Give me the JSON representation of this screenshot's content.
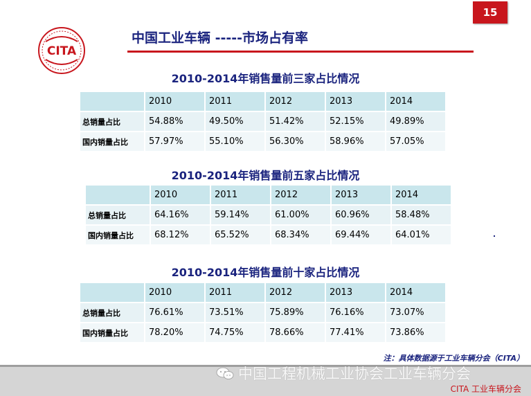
{
  "page_number": "15",
  "logo_text": "CITA",
  "page_title": "中国工业车辆 -----市场占有率",
  "colors": {
    "accent_red": "#c8161d",
    "navy": "#1a237e",
    "header_cell": "#c9e6ec",
    "body_cell": "#e7f2f5"
  },
  "tables": [
    {
      "title_year": "2010-2014",
      "title_rest": "年销售量前三家占比情况",
      "years": [
        "2010",
        "2011",
        "2012",
        "2013",
        "2014"
      ],
      "rows": [
        {
          "label": "总销量占比",
          "values": [
            "54.88%",
            "49.50%",
            "51.42%",
            "52.15%",
            "49.89%"
          ]
        },
        {
          "label": "国内销量占比",
          "values": [
            "57.97%",
            "55.10%",
            "56.30%",
            "58.96%",
            "57.05%"
          ]
        }
      ]
    },
    {
      "title_year": "2010-2014",
      "title_rest": "年销售量前五家占比情况",
      "years": [
        "2010",
        "2011",
        "2012",
        "2013",
        "2014"
      ],
      "rows": [
        {
          "label": "总销量占比",
          "values": [
            "64.16%",
            "59.14%",
            "61.00%",
            "60.96%",
            "58.48%"
          ]
        },
        {
          "label": "国内销量占比",
          "values": [
            "68.12%",
            "65.52%",
            "68.34%",
            "69.44%",
            "64.01%"
          ]
        }
      ]
    },
    {
      "title_year": "2010-2014",
      "title_rest": "年销售量前十家占比情况",
      "years": [
        "2010",
        "2011",
        "2012",
        "2013",
        "2014"
      ],
      "rows": [
        {
          "label": "总销量占比",
          "values": [
            "76.61%",
            "73.51%",
            "75.89%",
            "76.16%",
            "73.07%"
          ]
        },
        {
          "label": "国内销量占比",
          "values": [
            "78.20%",
            "74.75%",
            "78.66%",
            "77.41%",
            "73.86%"
          ]
        }
      ]
    }
  ],
  "note": "注：具体数据源于工业车辆分会（CITA）",
  "watermark": "中国工程机械工业协会工业车辆分会",
  "footer": "CITA 工业车辆分会"
}
